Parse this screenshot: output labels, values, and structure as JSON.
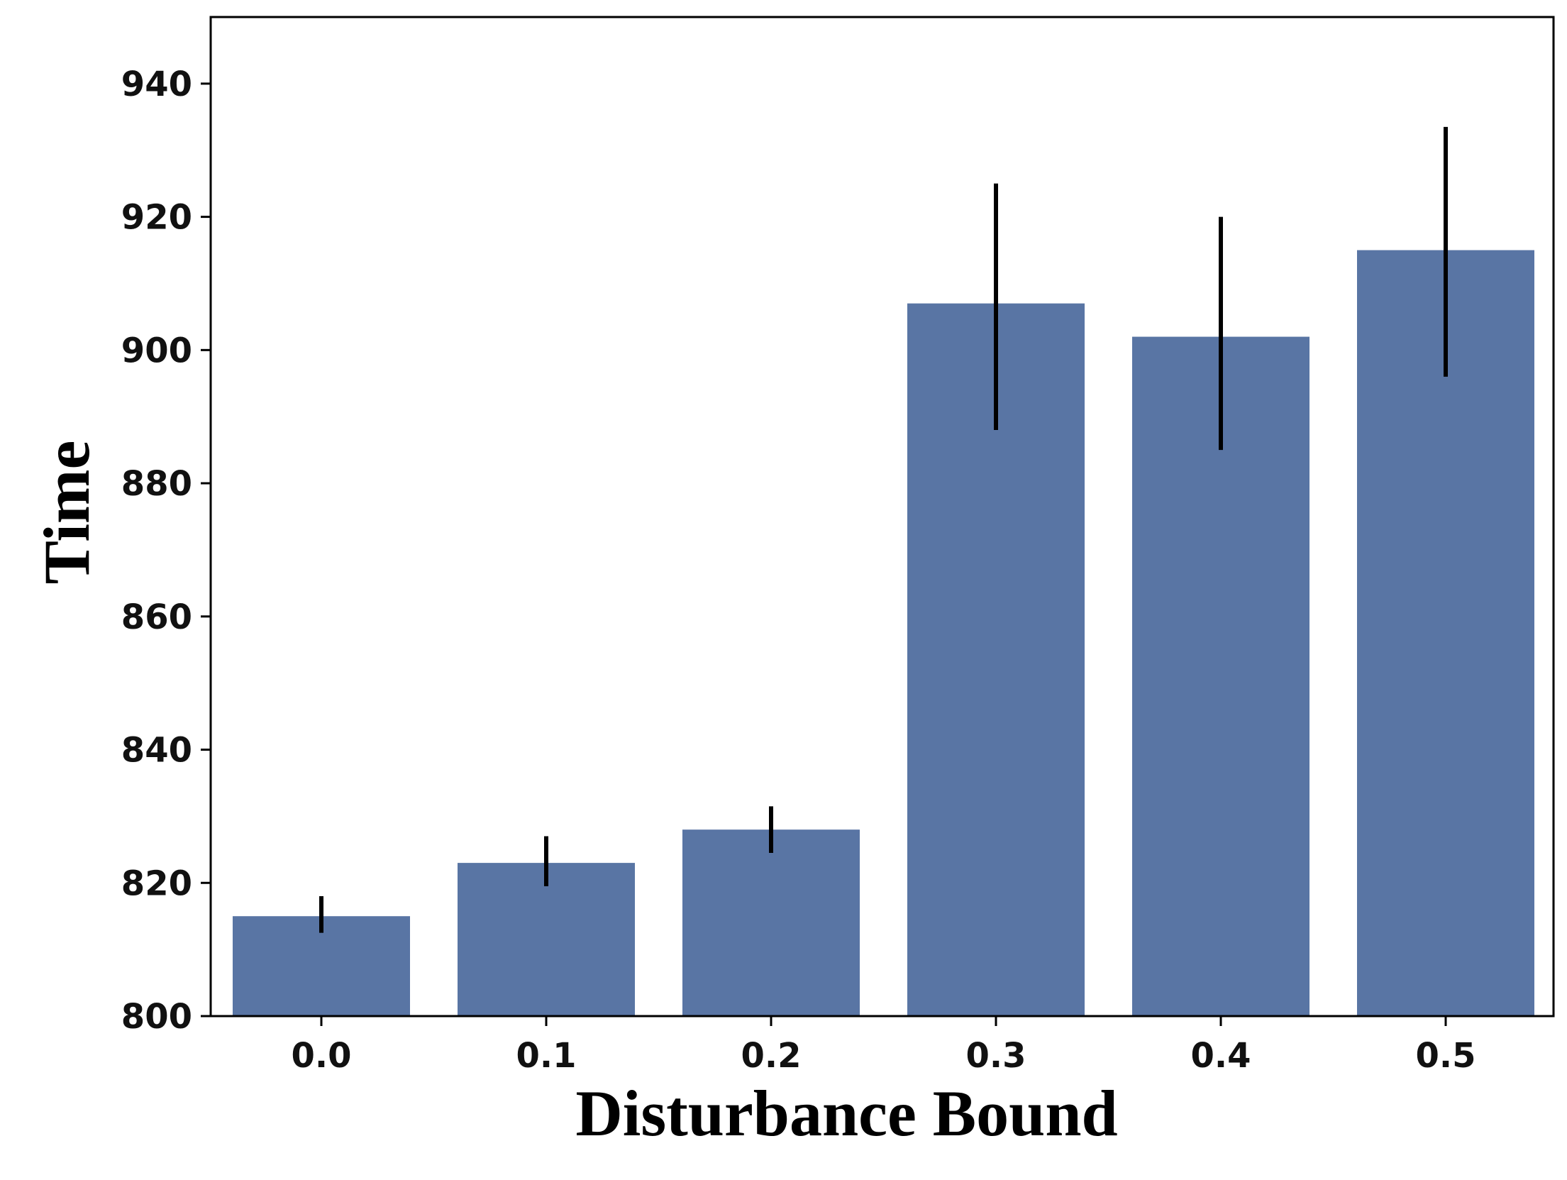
{
  "chart_data": {
    "type": "bar",
    "title": "",
    "xlabel": "Disturbance Bound",
    "ylabel": "Time",
    "categories": [
      "0.0",
      "0.1",
      "0.2",
      "0.3",
      "0.4",
      "0.5"
    ],
    "values": [
      815,
      823,
      828,
      907,
      902,
      915
    ],
    "error_low": [
      812.5,
      819.5,
      824.5,
      888,
      885,
      896
    ],
    "error_high": [
      818,
      827,
      831.5,
      925,
      920,
      933.5
    ],
    "ylim": [
      800,
      950
    ],
    "yticks": [
      "800",
      "820",
      "840",
      "860",
      "880",
      "900",
      "920",
      "940"
    ],
    "ytick_values": [
      800,
      820,
      840,
      860,
      880,
      900,
      920,
      940
    ],
    "bar_color": "#5975a4",
    "error_color": "#000000",
    "grid": false,
    "legend": "none"
  }
}
